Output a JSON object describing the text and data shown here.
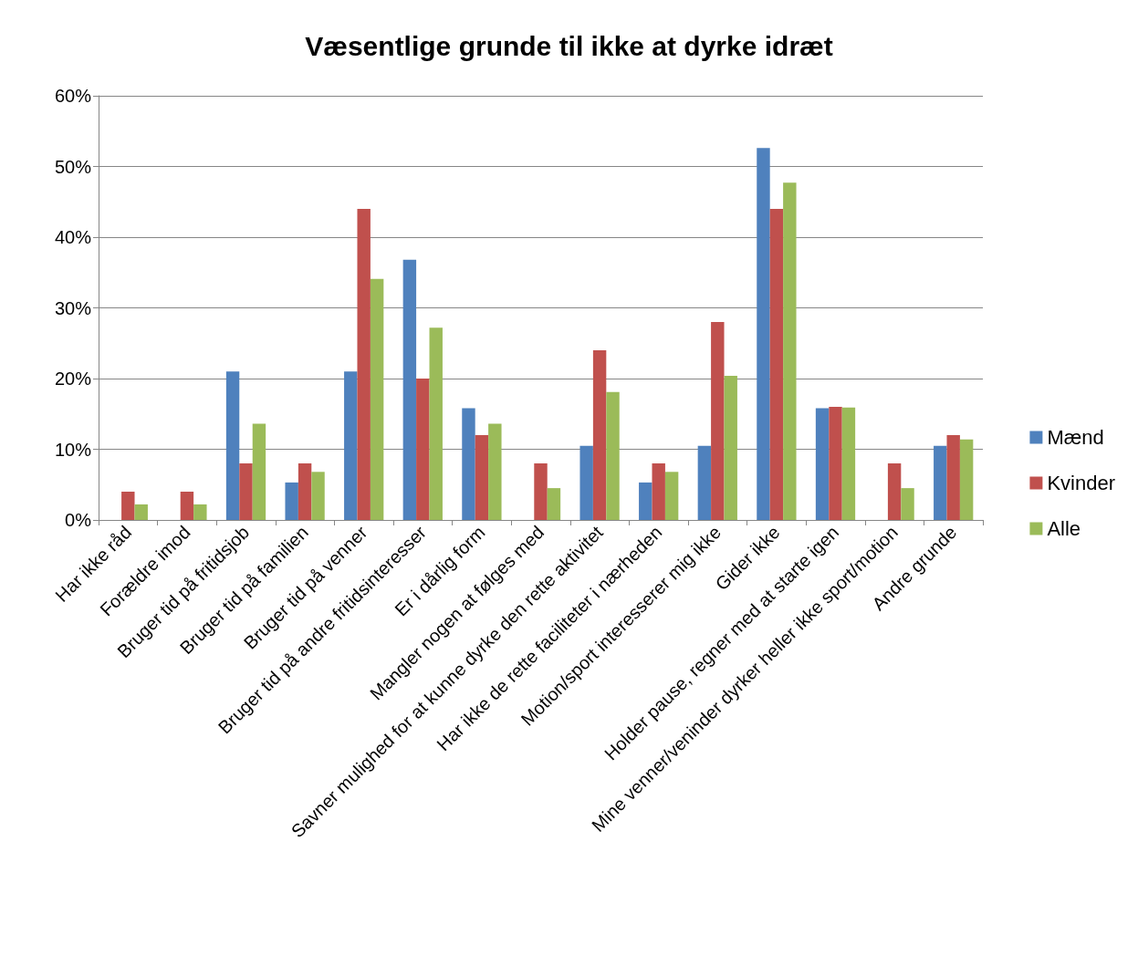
{
  "chart_data": {
    "type": "bar",
    "title": "Væsentlige grunde til ikke at dyrke idræt",
    "categories": [
      "Har ikke råd",
      "Forældre imod",
      "Bruger tid på fritidsjob",
      "Bruger tid på familien",
      "Bruger tid på venner",
      "Bruger tid på andre fritidsinteresser",
      "Er i dårlig form",
      "Mangler nogen at følges med",
      "Savner mulighed for at kunne dyrke den rette aktivitet",
      "Har ikke de rette faciliteter i nærheden",
      "Motion/sport interesserer mig ikke",
      "Gider ikke",
      "Holder pause, regner med at starte igen",
      "Mine venner/veninder dyrker heller ikke sport/motion",
      "Andre grunde"
    ],
    "series": [
      {
        "name": "Mænd",
        "color": "#4f81bd",
        "values": [
          0,
          0,
          21,
          5.3,
          21,
          36.8,
          15.8,
          0,
          10.5,
          5.3,
          10.5,
          52.6,
          15.8,
          0,
          10.5
        ]
      },
      {
        "name": "Kvinder",
        "color": "#c0504d",
        "values": [
          4,
          4,
          8,
          8,
          44,
          20,
          12,
          8,
          24,
          8,
          28,
          44,
          16,
          8,
          12
        ]
      },
      {
        "name": "Alle",
        "color": "#9bbb59",
        "values": [
          2.2,
          2.2,
          13.6,
          6.8,
          34.1,
          27.2,
          13.6,
          4.5,
          18.1,
          6.8,
          20.4,
          47.7,
          15.9,
          4.5,
          11.4
        ]
      }
    ],
    "ylim": [
      0,
      60
    ],
    "yticks": [
      {
        "value": 0,
        "label": "0%"
      },
      {
        "value": 10,
        "label": "10%"
      },
      {
        "value": 20,
        "label": "20%"
      },
      {
        "value": 30,
        "label": "30%"
      },
      {
        "value": 40,
        "label": "40%"
      },
      {
        "value": 50,
        "label": "50%"
      },
      {
        "value": 60,
        "label": "60%"
      }
    ],
    "grid": "y",
    "legend": "right"
  }
}
